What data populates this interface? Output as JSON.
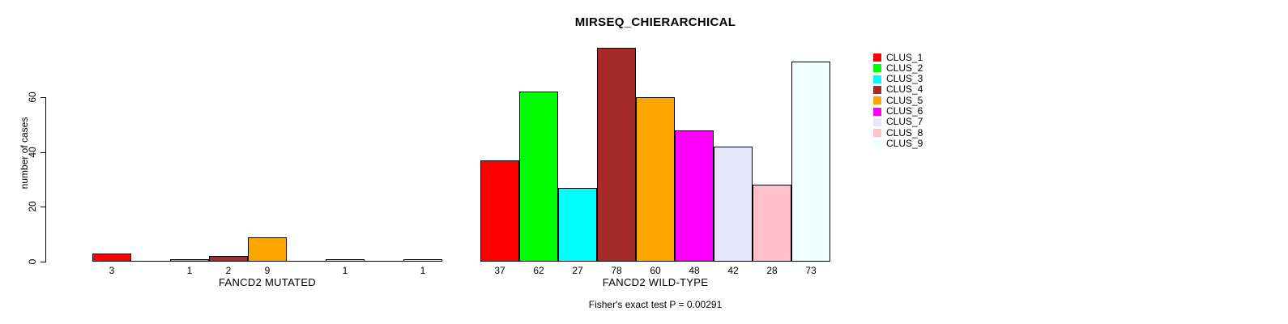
{
  "chart_data": {
    "type": "bar",
    "title": "MIRSEQ_CHIERARCHICAL",
    "ylabel": "number of cases",
    "xlabel": "",
    "annotation": "Fisher's exact test P = 0.00291",
    "categories": [
      "FANCD2 MUTATED",
      "FANCD2 WILD-TYPE"
    ],
    "series": [
      {
        "name": "CLUS_1",
        "color": "#FF0000",
        "values": [
          3,
          37
        ]
      },
      {
        "name": "CLUS_2",
        "color": "#00FF00",
        "values": [
          0,
          62
        ]
      },
      {
        "name": "CLUS_3",
        "color": "#00FFFF",
        "values": [
          1,
          27
        ]
      },
      {
        "name": "CLUS_4",
        "color": "#A52A2A",
        "values": [
          2,
          78
        ]
      },
      {
        "name": "CLUS_5",
        "color": "#FFA500",
        "values": [
          9,
          60
        ]
      },
      {
        "name": "CLUS_6",
        "color": "#FF00FF",
        "values": [
          0,
          48
        ]
      },
      {
        "name": "CLUS_7",
        "color": "#E6E6FA",
        "values": [
          1,
          42
        ]
      },
      {
        "name": "CLUS_8",
        "color": "#FFC0CB",
        "values": [
          0,
          28
        ]
      },
      {
        "name": "CLUS_9",
        "color": "#F0FFFF",
        "values": [
          1,
          73
        ]
      }
    ],
    "bar_value_labels_shown": true,
    "ylim": [
      0,
      60
    ],
    "yticks": [
      0,
      20,
      40,
      60
    ],
    "grid": false,
    "legend_position": "right",
    "bar_border_color": "#000000",
    "background_color": "#FFFFFF"
  }
}
